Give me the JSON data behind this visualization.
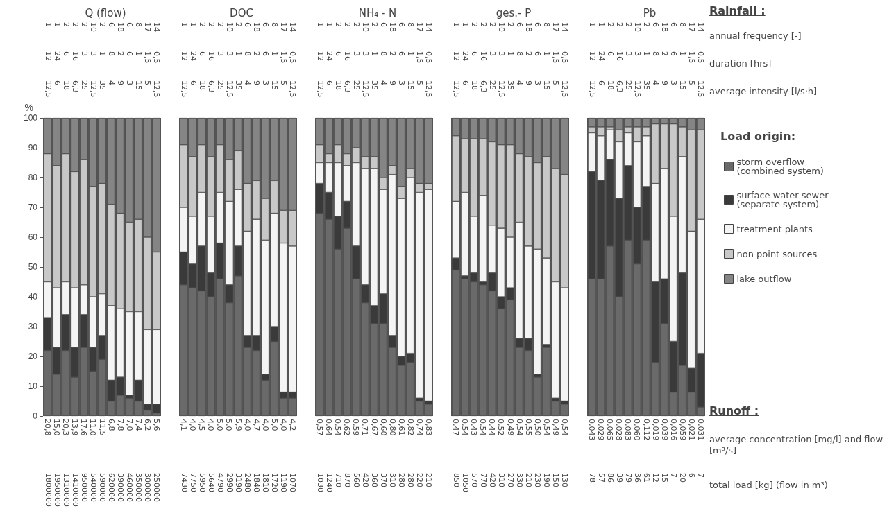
{
  "chart_data": [
    {
      "type": "bar",
      "title": "Q (flow)",
      "ylabel": "%",
      "stacked": true,
      "ylim": [
        0,
        100
      ],
      "yticks": [
        0,
        10,
        20,
        30,
        40,
        50,
        60,
        70,
        80,
        90,
        100
      ],
      "categories": [
        "20,8",
        "15,0",
        "20,3",
        "13,9",
        "17,6",
        "11,0",
        "11,5",
        "6,8",
        "7,8",
        "7,0",
        "7,4",
        "6,2",
        "5,6"
      ],
      "series": [
        {
          "color": "#6a6a6a",
          "values": [
            22,
            14,
            22,
            13,
            23,
            15,
            19,
            5,
            7,
            6,
            5,
            2,
            1
          ]
        },
        {
          "color": "#3a3a3a",
          "values": [
            11,
            9,
            12,
            10,
            11,
            8,
            8,
            7,
            6,
            1,
            7,
            2,
            3
          ]
        },
        {
          "color": "#f4f4f4",
          "values": [
            12,
            20,
            11,
            20,
            10,
            17,
            14,
            25,
            23,
            28,
            23,
            25,
            25
          ]
        },
        {
          "color": "#c8c8c8",
          "values": [
            43,
            41,
            43,
            39,
            42,
            37,
            37,
            34,
            32,
            30,
            31,
            31,
            26
          ]
        },
        {
          "color": "#858585",
          "values": [
            12,
            16,
            12,
            18,
            14,
            23,
            22,
            29,
            32,
            35,
            34,
            40,
            45
          ]
        }
      ],
      "annotations": [
        "1",
        "1",
        "2",
        "2",
        "2",
        "10",
        "2",
        "6",
        "18",
        "6",
        "8",
        "17",
        "14",
        "12",
        "24",
        "6",
        "16",
        "3",
        "3",
        "1",
        "8",
        "2",
        "6",
        "1",
        "1,5",
        "0,5",
        "12,5",
        "6",
        "18",
        "6,3",
        "25",
        "12,5",
        "35",
        "4",
        "9",
        "3",
        "15",
        "5",
        "12,5",
        "1800000",
        "1950000",
        "1310000",
        "1410000",
        "950000",
        "540000",
        "590000",
        "620000",
        "390000",
        "460000",
        "350000",
        "300000",
        "250000"
      ]
    },
    {
      "type": "bar",
      "title": "DOC",
      "stacked": true,
      "ylim": [
        0,
        100
      ],
      "tick_labels": "x",
      "categories": [
        "4,1",
        "4,0",
        "4,5",
        "4,0",
        "5,0",
        "5,0",
        "5,9",
        "4,0",
        "4,7",
        "4,0",
        "5,0",
        "4,0",
        "4,2"
      ],
      "series": [
        {
          "color": "#6a6a6a",
          "values": [
            44,
            43,
            42,
            40,
            46,
            38,
            47,
            23,
            22,
            12,
            25,
            6,
            6
          ]
        },
        {
          "color": "#3a3a3a",
          "values": [
            11,
            8,
            15,
            8,
            12,
            6,
            10,
            4,
            5,
            2,
            5,
            2,
            2
          ]
        },
        {
          "color": "#f4f4f4",
          "values": [
            15,
            16,
            18,
            19,
            17,
            28,
            19,
            35,
            39,
            45,
            38,
            50,
            49
          ]
        },
        {
          "color": "#c8c8c8",
          "values": [
            21,
            20,
            16,
            20,
            16,
            14,
            13,
            16,
            13,
            14,
            11,
            11,
            12
          ]
        },
        {
          "color": "#858585",
          "values": [
            9,
            13,
            9,
            13,
            9,
            14,
            11,
            22,
            21,
            27,
            21,
            31,
            31
          ]
        }
      ],
      "annotations": [
        "7430",
        "7750",
        "5950",
        "5640",
        "4790",
        "2990",
        "3190",
        "2480",
        "1840",
        "1810",
        "1720",
        "1190",
        "1070"
      ]
    },
    {
      "type": "bar",
      "title": "NH₄ - N",
      "stacked": true,
      "ylim": [
        0,
        100
      ],
      "tick_labels": "x",
      "categories": [
        "0,57",
        "0,64",
        "0,54",
        "0,62",
        "0,59",
        "0,71",
        "0,67",
        "0,60",
        "0,80",
        "0,61",
        "0,82",
        "0,74",
        "0,83"
      ],
      "series": [
        {
          "color": "#6a6a6a",
          "values": [
            68,
            66,
            56,
            63,
            46,
            38,
            31,
            31,
            23,
            17,
            18,
            5,
            4
          ]
        },
        {
          "color": "#3a3a3a",
          "values": [
            10,
            9,
            11,
            9,
            11,
            6,
            6,
            10,
            4,
            3,
            3,
            1,
            1
          ]
        },
        {
          "color": "#f4f4f4",
          "values": [
            7,
            10,
            18,
            12,
            28,
            39,
            46,
            35,
            54,
            53,
            59,
            69,
            71
          ]
        },
        {
          "color": "#c8c8c8",
          "values": [
            6,
            3,
            6,
            4,
            5,
            4,
            4,
            4,
            3,
            4,
            3,
            3,
            2
          ]
        },
        {
          "color": "#858585",
          "values": [
            9,
            12,
            9,
            12,
            10,
            13,
            13,
            20,
            16,
            23,
            17,
            22,
            22
          ]
        }
      ],
      "annotations": [
        "1030",
        "1240",
        "710",
        "870",
        "560",
        "420",
        "360",
        "370",
        "310",
        "280",
        "280",
        "220",
        "210"
      ]
    },
    {
      "type": "bar",
      "title": "ges.- P",
      "stacked": true,
      "ylim": [
        0,
        100
      ],
      "tick_labels": "x",
      "categories": [
        "0,47",
        "0,54",
        "0,43",
        "0,54",
        "0,44",
        "0,52",
        "0,49",
        "0,54",
        "0,55",
        "0,50",
        "0,54",
        "0,49",
        "0,54"
      ],
      "series": [
        {
          "color": "#6a6a6a",
          "values": [
            49,
            46,
            45,
            44,
            42,
            36,
            39,
            23,
            22,
            13,
            23,
            5,
            4
          ]
        },
        {
          "color": "#3a3a3a",
          "values": [
            4,
            1,
            3,
            1,
            6,
            4,
            4,
            3,
            4,
            1,
            1,
            1,
            1
          ]
        },
        {
          "color": "#f4f4f4",
          "values": [
            19,
            28,
            19,
            29,
            16,
            23,
            17,
            39,
            31,
            42,
            29,
            39,
            38
          ]
        },
        {
          "color": "#c8c8c8",
          "values": [
            22,
            18,
            26,
            19,
            28,
            28,
            31,
            23,
            30,
            29,
            34,
            38,
            38
          ]
        },
        {
          "color": "#858585",
          "values": [
            6,
            7,
            7,
            7,
            8,
            9,
            9,
            12,
            13,
            15,
            13,
            17,
            19
          ]
        }
      ],
      "annotations": [
        "850",
        "1050",
        "570",
        "770",
        "420",
        "310",
        "270",
        "330",
        "210",
        "230",
        "190",
        "150",
        "130"
      ]
    },
    {
      "type": "bar",
      "title": "Pb",
      "stacked": true,
      "ylim": [
        0,
        100
      ],
      "tick_labels": "x",
      "legend": "right",
      "legend_title": "Load origin:",
      "categories": [
        "0,043",
        "0,029",
        "0,065",
        "0,028",
        "0,083",
        "0,060",
        "0,112",
        "0,019",
        "0,039",
        "0,016",
        "0,059",
        "0,021",
        "0,031"
      ],
      "series": [
        {
          "name": "storm overflow\n(combined system)",
          "color": "#6a6a6a",
          "values": [
            46,
            46,
            57,
            40,
            59,
            51,
            59,
            18,
            31,
            8,
            17,
            8,
            3
          ]
        },
        {
          "name": "surface water sewer\n(separate system)",
          "color": "#3a3a3a",
          "values": [
            36,
            33,
            29,
            33,
            25,
            19,
            18,
            27,
            15,
            17,
            31,
            8,
            18
          ]
        },
        {
          "name": "treatment plants",
          "color": "#f4f4f4",
          "values": [
            13,
            15,
            10,
            19,
            11,
            22,
            17,
            33,
            37,
            42,
            39,
            46,
            45
          ]
        },
        {
          "name": "non point sources",
          "color": "#c8c8c8",
          "values": [
            2,
            3,
            1,
            4,
            2,
            5,
            3,
            20,
            15,
            31,
            10,
            34,
            30
          ]
        },
        {
          "name": "lake outflow",
          "color": "#858585",
          "values": [
            3,
            3,
            3,
            4,
            3,
            3,
            3,
            2,
            2,
            2,
            3,
            4,
            4
          ]
        }
      ],
      "annotations": [
        "78",
        "57",
        "86",
        "39",
        "79",
        "36",
        "61",
        "12",
        "15",
        "7",
        "20",
        "6",
        "7"
      ]
    },
    {
      "type": "other",
      "annotations": [
        "Rainfall :",
        "annual frequency [-]",
        "duration [hrs]",
        "average intensity [l/s·h]",
        "Runoff :",
        "average concentration [mg/l] and flow [m³/s]",
        "total load [kg] (flow in m³)"
      ]
    }
  ]
}
